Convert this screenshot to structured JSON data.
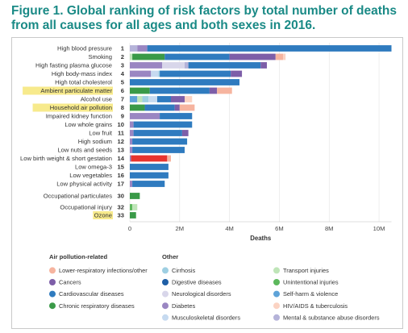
{
  "title": "Figure 1. Global ranking of risk factors by total number of deaths from all causes for all ages and both sexes in 2016.",
  "chart_data": {
    "type": "bar",
    "orientation": "horizontal",
    "stacked": true,
    "xlabel": "Deaths",
    "ticks": [
      {
        "value": 0,
        "label": "0"
      },
      {
        "value": 2000000,
        "label": "2M"
      },
      {
        "value": 4000000,
        "label": "4M"
      },
      {
        "value": 6000000,
        "label": "6M"
      },
      {
        "value": 8000000,
        "label": "8M"
      },
      {
        "value": 10000000,
        "label": "10M"
      }
    ],
    "xlim": [
      0,
      10500000
    ],
    "grid": true,
    "legend_groups": [
      {
        "title": "Air pollution-related",
        "items": [
          {
            "key": "lri",
            "label": "Lower-respiratory infections/other",
            "color": "#f6b49f"
          },
          {
            "key": "cancer",
            "label": "Cancers",
            "color": "#7d5ea8"
          },
          {
            "key": "cvd",
            "label": "Cardiovascular diseases",
            "color": "#2f7bbf"
          },
          {
            "key": "chronic",
            "label": "Chronic respiratory diseases",
            "color": "#3a9a48"
          }
        ]
      },
      {
        "title": "Other",
        "items": [
          {
            "key": "cirrhosis",
            "label": "Cirrhosis",
            "color": "#9ecfe2"
          },
          {
            "key": "digestive",
            "label": "Digestive diseases",
            "color": "#1f5fa6"
          },
          {
            "key": "neuro",
            "label": "Neurological disorders",
            "color": "#d8d6ea"
          },
          {
            "key": "diabetes",
            "label": "Diabetes",
            "color": "#9a86c2"
          },
          {
            "key": "musculo",
            "label": "Musculoskeletal disorders",
            "color": "#c6daf0"
          }
        ]
      },
      {
        "title": "",
        "items": [
          {
            "key": "transport",
            "label": "Transport injuries",
            "color": "#bfe5b8"
          },
          {
            "key": "unintentional",
            "label": "Unintentional injuries",
            "color": "#5cb85c"
          },
          {
            "key": "selfharm",
            "label": "Self-harm & violence",
            "color": "#5ea3d8"
          },
          {
            "key": "hiv",
            "label": "HIV/AIDS & tuberculosis",
            "color": "#fbd3c3"
          },
          {
            "key": "mental",
            "label": "Mental & substance abuse disorders",
            "color": "#b5b3d9"
          }
        ]
      }
    ],
    "categories": [
      {
        "rank": "1",
        "label": "High blood pressure",
        "highlight": false,
        "segments": [
          {
            "key": "mental",
            "value": 300000
          },
          {
            "key": "diabetes",
            "value": 400000
          },
          {
            "key": "cvd",
            "value": 9800000
          }
        ]
      },
      {
        "rank": "2",
        "label": "Smoking",
        "highlight": false,
        "segments": [
          {
            "key": "transport",
            "value": 100000
          },
          {
            "key": "chronic",
            "value": 1300000
          },
          {
            "key": "cvd",
            "value": 2600000
          },
          {
            "key": "cancer",
            "value": 1850000
          },
          {
            "key": "lri",
            "value": 300000
          },
          {
            "key": "hiv",
            "value": 100000
          }
        ]
      },
      {
        "rank": "3",
        "label": "High fasting plasma glucose",
        "highlight": false,
        "segments": [
          {
            "key": "diabetes",
            "value": 1300000
          },
          {
            "key": "neuro",
            "value": 900000
          },
          {
            "key": "mental",
            "value": 150000
          },
          {
            "key": "cvd",
            "value": 2900000
          },
          {
            "key": "cancer",
            "value": 250000
          }
        ]
      },
      {
        "rank": "4",
        "label": "High body-mass index",
        "highlight": false,
        "segments": [
          {
            "key": "diabetes",
            "value": 850000
          },
          {
            "key": "musculo",
            "value": 300000
          },
          {
            "key": "cirrhosis",
            "value": 50000
          },
          {
            "key": "cvd",
            "value": 2850000
          },
          {
            "key": "cancer",
            "value": 450000
          }
        ]
      },
      {
        "rank": "5",
        "label": "High total cholesterol",
        "highlight": false,
        "segments": [
          {
            "key": "cvd",
            "value": 4400000
          }
        ]
      },
      {
        "rank": "6",
        "label": "Ambient particulate matter",
        "highlight": true,
        "segments": [
          {
            "key": "chronic",
            "value": 800000
          },
          {
            "key": "cvd",
            "value": 2400000
          },
          {
            "key": "cancer",
            "value": 300000
          },
          {
            "key": "lri",
            "value": 600000
          }
        ]
      },
      {
        "rank": "7",
        "label": "Alcohol use",
        "highlight": false,
        "segments": [
          {
            "key": "selfharm",
            "value": 300000
          },
          {
            "key": "transport",
            "value": 200000
          },
          {
            "key": "cirrhosis",
            "value": 250000
          },
          {
            "key": "musculo",
            "value": 350000
          },
          {
            "key": "cvd",
            "value": 550000
          },
          {
            "key": "cancer",
            "value": 550000
          },
          {
            "key": "hiv",
            "value": 300000
          }
        ]
      },
      {
        "rank": "8",
        "label": "Household air pollution",
        "highlight": true,
        "segments": [
          {
            "key": "chronic",
            "value": 600000
          },
          {
            "key": "cvd",
            "value": 1200000
          },
          {
            "key": "cancer",
            "value": 200000
          },
          {
            "key": "lri",
            "value": 600000
          }
        ]
      },
      {
        "rank": "9",
        "label": "Impaired kidney function",
        "highlight": false,
        "segments": [
          {
            "key": "diabetes",
            "value": 1200000
          },
          {
            "key": "cvd",
            "value": 1300000
          }
        ]
      },
      {
        "rank": "10",
        "label": "Low whole grains",
        "highlight": false,
        "segments": [
          {
            "key": "diabetes",
            "value": 150000
          },
          {
            "key": "cvd",
            "value": 2350000
          }
        ]
      },
      {
        "rank": "11",
        "label": "Low fruit",
        "highlight": false,
        "segments": [
          {
            "key": "diabetes",
            "value": 150000
          },
          {
            "key": "cvd",
            "value": 1950000
          },
          {
            "key": "cancer",
            "value": 250000
          }
        ]
      },
      {
        "rank": "12",
        "label": "High sodium",
        "highlight": false,
        "segments": [
          {
            "key": "diabetes",
            "value": 100000
          },
          {
            "key": "cvd",
            "value": 2200000
          }
        ]
      },
      {
        "rank": "13",
        "label": "Low nuts and seeds",
        "highlight": false,
        "segments": [
          {
            "key": "diabetes",
            "value": 100000
          },
          {
            "key": "cvd",
            "value": 2100000
          }
        ]
      },
      {
        "rank": "14",
        "label": "Low birth weight & short gestation",
        "highlight": false,
        "segments": [
          {
            "key": "diabetes",
            "value": 50000
          },
          {
            "key": "red",
            "value": 1450000
          },
          {
            "key": "lri",
            "value": 150000
          }
        ]
      },
      {
        "rank": "15",
        "label": "Low omega-3",
        "highlight": false,
        "segments": [
          {
            "key": "cvd",
            "value": 1550000
          }
        ]
      },
      {
        "rank": "16",
        "label": "Low vegetables",
        "highlight": false,
        "segments": [
          {
            "key": "cvd",
            "value": 1550000
          }
        ]
      },
      {
        "rank": "17",
        "label": "Low physical activity",
        "highlight": false,
        "segments": [
          {
            "key": "diabetes",
            "value": 100000
          },
          {
            "key": "cvd",
            "value": 1300000
          }
        ]
      },
      {
        "rank": "30",
        "label": "Occupational particulates",
        "highlight": false,
        "gap_before": true,
        "segments": [
          {
            "key": "chronic",
            "value": 400000
          }
        ]
      },
      {
        "rank": "32",
        "label": "Occupational injury",
        "highlight": false,
        "gap_before": true,
        "segments": [
          {
            "key": "unintentional",
            "value": 100000
          },
          {
            "key": "transport",
            "value": 200000
          }
        ]
      },
      {
        "rank": "33",
        "label": "Ozone",
        "highlight": true,
        "segments": [
          {
            "key": "chronic",
            "value": 250000
          }
        ]
      }
    ],
    "extra_colors": {
      "red": "#e8342e"
    }
  }
}
